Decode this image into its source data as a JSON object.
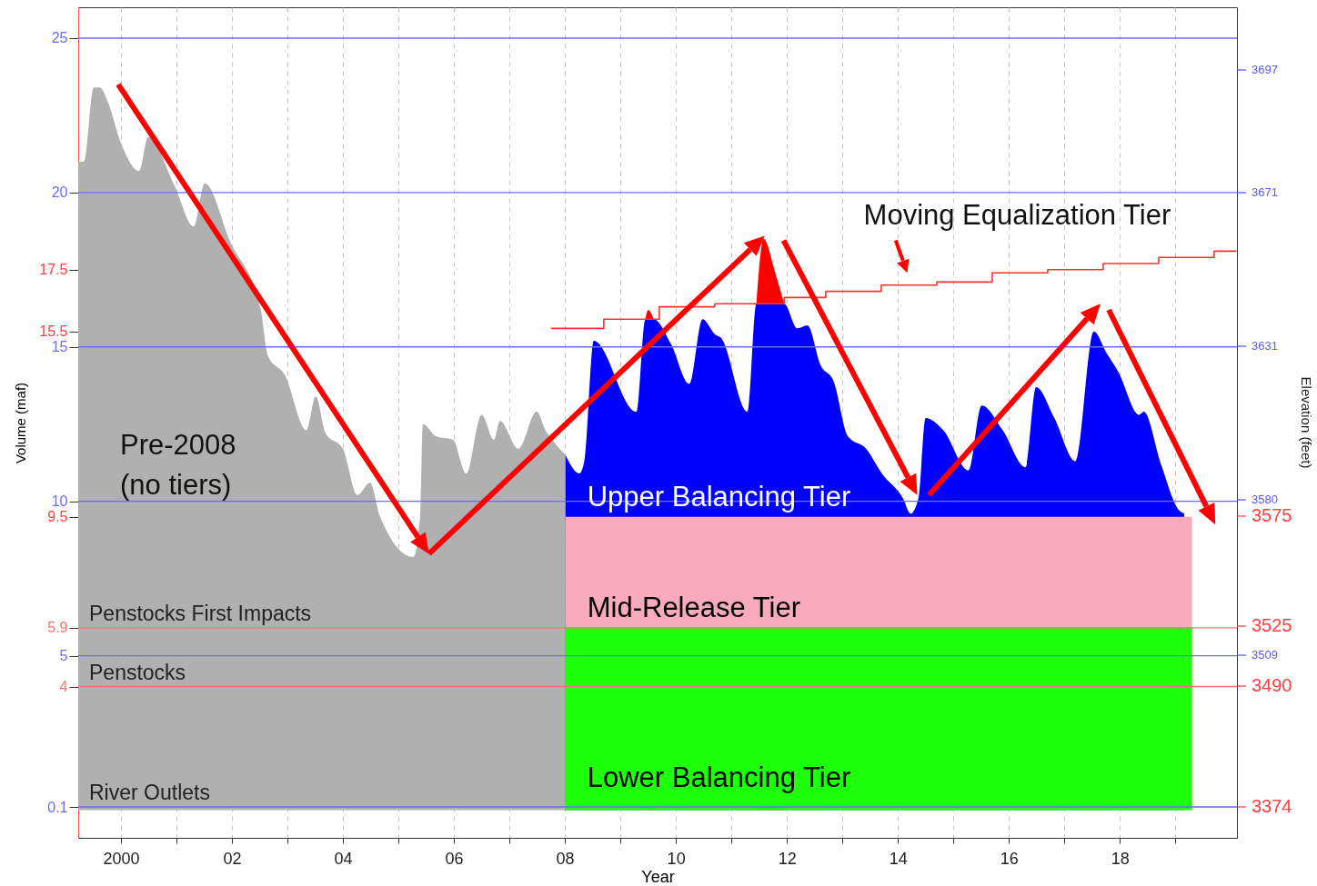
{
  "chart_data": {
    "type": "area",
    "xlabel": "Year",
    "ylabel": "Volume (maf)",
    "y2label": "Elevation (feet)",
    "xlim": [
      1999.23,
      2020.11
    ],
    "xticks": [
      2000,
      {
        "value": 2001,
        "label": null
      },
      {
        "value": 2002,
        "label": "02"
      },
      {
        "value": 2003,
        "label": null
      },
      {
        "value": 2004,
        "label": "04"
      },
      {
        "value": 2005,
        "label": null
      },
      {
        "value": 2006,
        "label": "06"
      },
      {
        "value": 2007,
        "label": null
      },
      {
        "value": 2008,
        "label": "08"
      },
      {
        "value": 2009,
        "label": null
      },
      {
        "value": 2010,
        "label": "10"
      },
      {
        "value": 2011,
        "label": null
      },
      {
        "value": 2012,
        "label": "12"
      },
      {
        "value": 2013,
        "label": null
      },
      {
        "value": 2014,
        "label": "14"
      },
      {
        "value": 2015,
        "label": null
      },
      {
        "value": 2016,
        "label": "16"
      },
      {
        "value": 2017,
        "label": null
      },
      {
        "value": 2018,
        "label": "18"
      },
      {
        "value": 2019,
        "label": null
      }
    ],
    "ylim": [
      -0.9,
      26
    ],
    "yticks": [
      25,
      20,
      17.5,
      15.5,
      15,
      10,
      9.5,
      5.9,
      5,
      4,
      0.1
    ],
    "grid": "x",
    "annotations": [
      "Pre-2008\n(no tiers)",
      "3697",
      "3671",
      "3631",
      "3580",
      "3575",
      "3525",
      "3509",
      "3490",
      "3374",
      {
        "text": "Moving Equalization Tier",
        "x": 2014.17,
        "y": 17.1
      }
    ],
    "ref_lines": [
      {
        "axis": "y",
        "value": 25,
        "color": "#6b6bff"
      },
      {
        "axis": "y",
        "value": 20,
        "color": "#6b6bff"
      },
      {
        "axis": "y",
        "value": 15,
        "color": "#6b6bff"
      },
      {
        "axis": "y",
        "value": 10,
        "color": "#6b6bff"
      },
      {
        "axis": "y",
        "value": 5,
        "color": "#6b6bff"
      },
      {
        "axis": "y",
        "value": 5.9,
        "color": "#ff7070",
        "label": "Penstocks First Impacts"
      },
      {
        "axis": "y",
        "value": 4,
        "color": "#ff7070",
        "label": "Penstocks"
      },
      {
        "axis": "y",
        "value": 0.1,
        "color": "#6b6bff",
        "label": "River Outlets"
      }
    ],
    "series": [
      {
        "color": "#ff0000",
        "x": [
          2009.45,
          2009.5,
          2009.6
        ],
        "values": [
          15.9,
          16.2,
          15.9
        ]
      },
      {
        "color": "#ff0000",
        "x": [
          2011.45,
          2011.58,
          2011.79,
          2011.95
        ],
        "values": [
          16.4,
          18.5,
          17.4,
          16.4
        ]
      },
      {
        "color": "#b0b0b0",
        "x": [
          1999.23,
          1999.33,
          1999.51,
          1999.62,
          1999.75,
          2000.0,
          2000.33,
          2000.49,
          2000.97,
          2001.31,
          2001.51,
          2001.97,
          2002.52,
          2002.65,
          2002.95,
          2003.34,
          2003.51,
          2003.69,
          2004.0,
          2004.26,
          2004.49,
          2004.67,
          2005.27,
          2005.39,
          2005.44,
          2005.68,
          2005.98,
          2006.22,
          2006.5,
          2006.72,
          2006.83,
          2007.16,
          2007.49,
          2007.65,
          2007.81,
          2008.01
        ],
        "values": [
          21.0,
          21.0,
          23.4,
          23.4,
          23.0,
          21.6,
          20.7,
          21.8,
          20.2,
          18.9,
          20.3,
          18.4,
          16.2,
          14.7,
          14.1,
          12.3,
          13.4,
          12.2,
          11.7,
          10.2,
          10.6,
          9.5,
          8.2,
          9.5,
          12.5,
          12.1,
          12.0,
          10.9,
          12.8,
          12.0,
          12.6,
          11.7,
          12.9,
          12.3,
          11.9,
          11.5
        ]
      },
      {
        "name": "Upper Balancing Tier",
        "color": "#0000ff",
        "x": [
          2008.01,
          2008.26,
          2008.35,
          2008.52,
          2009.29,
          2009.45,
          2009.5,
          2009.6,
          2009.91,
          2010.24,
          2010.48,
          2010.71,
          2010.81,
          2011.29,
          2011.45,
          2011.58,
          2011.79,
          2011.95,
          2012.19,
          2012.37,
          2012.61,
          2012.84,
          2013.1,
          2013.43,
          2013.71,
          2014.09,
          2014.23,
          2014.37,
          2014.5,
          2014.82,
          2015.27,
          2015.51,
          2015.89,
          2016.3,
          2016.49,
          2016.82,
          2017.2,
          2017.53,
          2017.76,
          2017.97,
          2018.35,
          2018.43,
          2018.74,
          2019.07,
          2019.16
        ],
        "values": [
          11.5,
          10.9,
          11.3,
          15.2,
          12.9,
          15.9,
          15.9,
          15.9,
          15.1,
          13.8,
          15.9,
          15.4,
          15.3,
          12.9,
          16.4,
          16.4,
          16.4,
          16.4,
          15.6,
          15.7,
          14.4,
          13.9,
          12.1,
          11.7,
          10.9,
          10.1,
          9.6,
          10.1,
          12.7,
          12.3,
          11.0,
          13.1,
          12.3,
          11.1,
          13.7,
          12.7,
          11.3,
          15.5,
          14.8,
          14.2,
          12.8,
          12.9,
          11.2,
          9.7,
          9.6
        ]
      },
      {
        "name": "Mid-Release Tier",
        "color": "#f9abbd",
        "x": [
          2008.01,
          2019.3
        ],
        "values": [
          9.5,
          9.5
        ]
      },
      {
        "name": "Lower Balancing Tier",
        "color": "#1eff0c",
        "x": [
          2008.01,
          2019.3
        ],
        "values": [
          5.9,
          5.9
        ]
      },
      {
        "type": "step",
        "color": "#ff3030",
        "x": [
          2007.75,
          2008.7,
          2009.7,
          2010.7,
          2011.95,
          2012.7,
          2013.7,
          2014.7,
          2015.7,
          2016.7,
          2017.7,
          2018.7,
          2019.7,
          2020.1
        ],
        "values": [
          15.6,
          15.9,
          16.3,
          16.4,
          16.6,
          16.8,
          17.0,
          17.1,
          17.4,
          17.5,
          17.7,
          17.9,
          18.1,
          18.1
        ]
      }
    ]
  }
}
